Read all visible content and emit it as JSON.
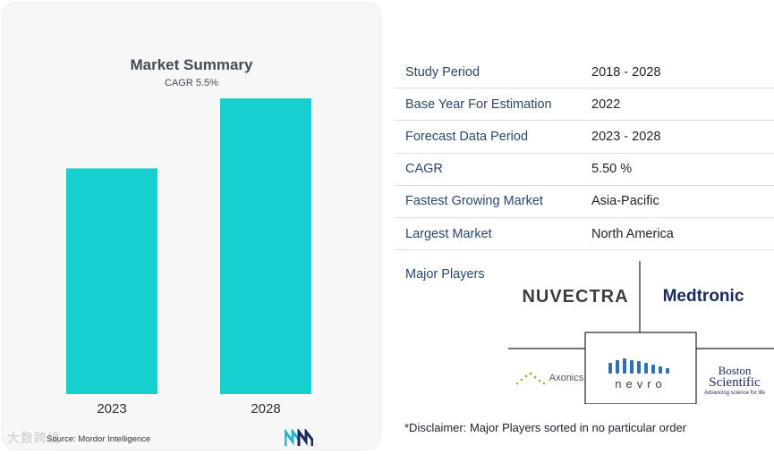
{
  "chart_data": {
    "type": "bar",
    "title": "Market Summary",
    "subtitle": "CAGR 5.5%",
    "categories": [
      "2023",
      "2028"
    ],
    "values": [
      1.0,
      1.31
    ],
    "color": "#16cfcf",
    "ylim": [
      0,
      1.35
    ],
    "grid": false
  },
  "source_text": "Source: Mordor Intelligence",
  "watermark": "大数跨境",
  "summary_rows": [
    {
      "key": "Study Period",
      "value": "2018 - 2028"
    },
    {
      "key": "Base Year For Estimation",
      "value": "2022"
    },
    {
      "key": "Forecast Data Period",
      "value": "2023 - 2028"
    },
    {
      "key": "CAGR",
      "value": "5.50 %"
    },
    {
      "key": "Fastest Growing Market",
      "value": "Asia-Pacific"
    },
    {
      "key": "Largest Market",
      "value": "North America"
    }
  ],
  "major_players_label": "Major Players",
  "players": {
    "nuvectra": "NUVECTRA",
    "medtronic": "Medtronic",
    "axonics": "Axonics",
    "nevro": "nevro",
    "boston_1": "Boston",
    "boston_2": "Scientific",
    "boston_tagline": "Advancing science for life"
  },
  "disclaimer": "*Disclaimer: Major Players sorted in no particular order",
  "colors": {
    "bar": "#16cfcf",
    "key_text": "#27496d",
    "brand_navy": "#1b2a5e",
    "brand_teal": "#2bb6c9"
  }
}
